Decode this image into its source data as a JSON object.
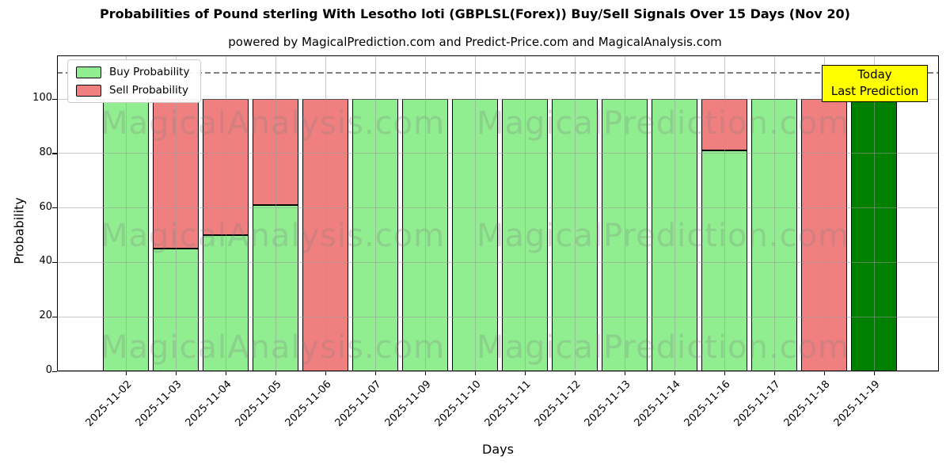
{
  "title": "Probabilities of Pound sterling With Lesotho loti (GBPLSL(Forex)) Buy/Sell Signals Over 15 Days (Nov 20)",
  "subtitle": "powered by MagicalPrediction.com and Predict-Price.com and MagicalAnalysis.com",
  "legend": {
    "buy_label": "Buy Probability",
    "sell_label": "Sell Probability"
  },
  "annotation": {
    "line1": "Today",
    "line2": "Last Prediction"
  },
  "axes": {
    "x_label": "Days",
    "y_label": "Probability",
    "y_ticks": [
      0,
      20,
      40,
      60,
      80,
      100
    ]
  },
  "watermarks": {
    "left_text": "MagicalAnalysis.com",
    "right_text": "MagicalPrediction.com"
  },
  "colors": {
    "buy": "#90ee90",
    "sell": "#f08080",
    "today_bar": "#008000",
    "annotation_bg": "#ffff00",
    "grid": "#9a9a9a",
    "dashed_line": "#7f7f7f"
  },
  "chart_data": {
    "type": "bar",
    "stacked": true,
    "title": "Probabilities of Pound sterling With Lesotho loti (GBPLSL(Forex)) Buy/Sell Signals Over 15 Days (Nov 20)",
    "xlabel": "Days",
    "ylabel": "Probability",
    "ylim": [
      0,
      116
    ],
    "dashed_line_y": 110,
    "grid": true,
    "legend_position": "upper left",
    "categories": [
      "2025-11-02",
      "2025-11-03",
      "2025-11-04",
      "2025-11-05",
      "2025-11-06",
      "2025-11-07",
      "2025-11-09",
      "2025-11-10",
      "2025-11-11",
      "2025-11-12",
      "2025-11-13",
      "2025-11-14",
      "2025-11-16",
      "2025-11-17",
      "2025-11-18",
      "2025-11-19"
    ],
    "series": [
      {
        "name": "Buy Probability",
        "color": "#90ee90",
        "values": [
          100,
          45,
          50,
          61,
          0,
          100,
          100,
          100,
          100,
          100,
          100,
          100,
          81,
          100,
          0,
          100
        ]
      },
      {
        "name": "Sell Probability",
        "color": "#f08080",
        "values": [
          0,
          55,
          50,
          39,
          100,
          0,
          0,
          0,
          0,
          0,
          0,
          0,
          19,
          0,
          100,
          0
        ]
      }
    ],
    "today_bar": {
      "index": 15,
      "color": "#008000",
      "label": "Today Last Prediction"
    }
  }
}
